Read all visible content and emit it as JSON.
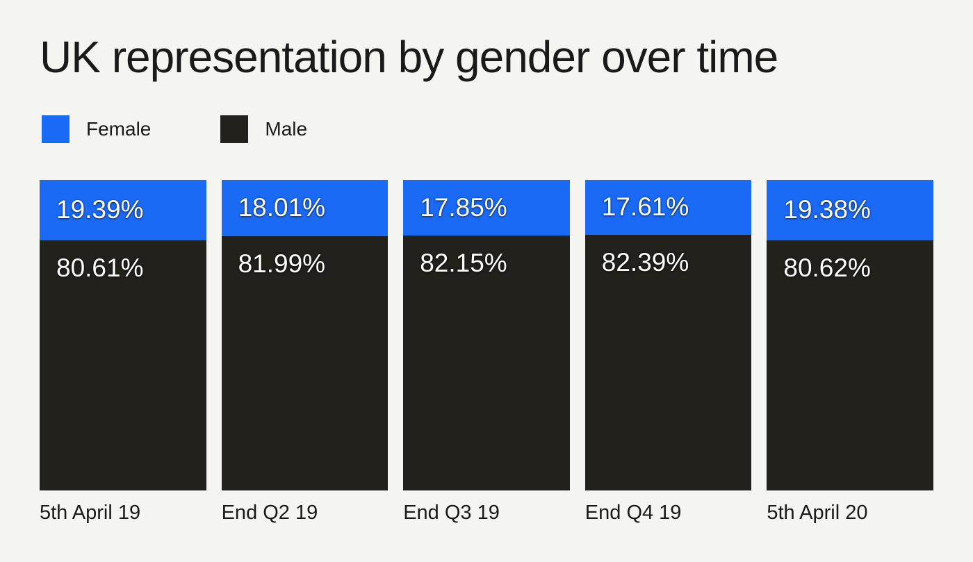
{
  "title": "UK representation by gender over time",
  "legend": [
    {
      "label": "Female",
      "color": "#1b6af5"
    },
    {
      "label": "Male",
      "color": "#22211c"
    }
  ],
  "colors": {
    "background": "#f4f4f1",
    "female": "#1b6af5",
    "male": "#22211c",
    "text": "#1a1a1a",
    "bar_label_text": "#ffffff"
  },
  "chart_data": {
    "type": "bar",
    "stacked": true,
    "orientation": "vertical",
    "categories": [
      "5th April 19",
      "End Q2 19",
      "End Q3 19",
      "End Q4 19",
      "5th April 20"
    ],
    "series": [
      {
        "name": "Female",
        "color": "#1b6af5",
        "values": [
          19.39,
          18.01,
          17.85,
          17.61,
          19.38
        ],
        "labels": [
          "19.39%",
          "18.01%",
          "17.85%",
          "17.61%",
          "19.38%"
        ]
      },
      {
        "name": "Male",
        "color": "#22211c",
        "values": [
          80.61,
          81.99,
          82.15,
          82.39,
          80.62
        ],
        "labels": [
          "80.61%",
          "81.99%",
          "82.15%",
          "82.39%",
          "80.62%"
        ]
      }
    ],
    "value_suffix": "%",
    "ylim": [
      0,
      100
    ],
    "grid": false,
    "axes_shown": false,
    "legend_position": "top-left",
    "title": "UK representation by gender over time"
  }
}
